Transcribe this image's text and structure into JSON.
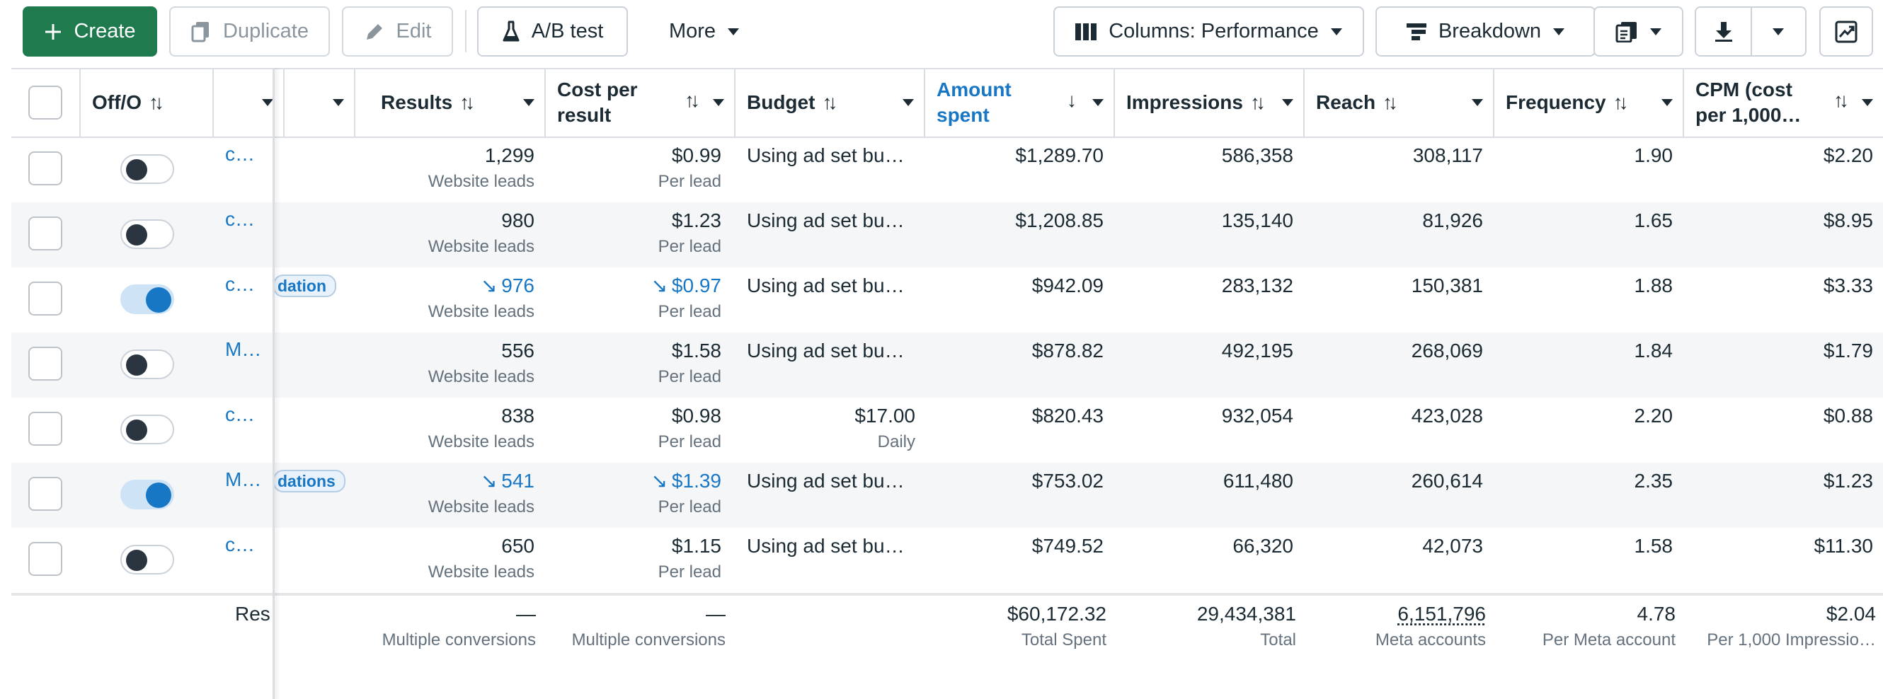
{
  "toolbar": {
    "create_label": "Create",
    "duplicate_label": "Duplicate",
    "edit_label": "Edit",
    "abtest_label": "A/B test",
    "more_label": "More",
    "columns_label": "Columns: Performance",
    "breakdown_label": "Breakdown"
  },
  "columns": {
    "off_on": "Off/O",
    "results": "Results",
    "cost_per_result": "Cost per result",
    "budget": "Budget",
    "amount_spent": "Amount spent",
    "impressions": "Impressions",
    "reach": "Reach",
    "frequency": "Frequency",
    "cpm": "CPM (cost per 1,000…"
  },
  "rows": [
    {
      "name": "c…",
      "on": false,
      "badge": "",
      "results": "1,299",
      "results_sub": "Website leads",
      "cpr": "$0.99",
      "cpr_sub": "Per lead",
      "budget": "Using ad set bu…",
      "budget_sub": "",
      "spent": "$1,289.70",
      "impressions": "586,358",
      "reach": "308,117",
      "frequency": "1.90",
      "cpm": "$2.20"
    },
    {
      "name": "c…",
      "on": false,
      "badge": "",
      "results": "980",
      "results_sub": "Website leads",
      "cpr": "$1.23",
      "cpr_sub": "Per lead",
      "budget": "Using ad set bu…",
      "budget_sub": "",
      "spent": "$1,208.85",
      "impressions": "135,140",
      "reach": "81,926",
      "frequency": "1.65",
      "cpm": "$8.95"
    },
    {
      "name": "c…",
      "on": true,
      "badge": "dation",
      "results": "976",
      "results_sub": "Website leads",
      "cpr": "$0.97",
      "cpr_sub": "Per lead",
      "budget": "Using ad set bu…",
      "budget_sub": "",
      "spent": "$942.09",
      "impressions": "283,132",
      "reach": "150,381",
      "frequency": "1.88",
      "cpm": "$3.33"
    },
    {
      "name": "M…",
      "on": false,
      "badge": "",
      "results": "556",
      "results_sub": "Website leads",
      "cpr": "$1.58",
      "cpr_sub": "Per lead",
      "budget": "Using ad set bu…",
      "budget_sub": "",
      "spent": "$878.82",
      "impressions": "492,195",
      "reach": "268,069",
      "frequency": "1.84",
      "cpm": "$1.79"
    },
    {
      "name": "c…",
      "on": false,
      "badge": "",
      "results": "838",
      "results_sub": "Website leads",
      "cpr": "$0.98",
      "cpr_sub": "Per lead",
      "budget": "$17.00",
      "budget_sub": "Daily",
      "spent": "$820.43",
      "impressions": "932,054",
      "reach": "423,028",
      "frequency": "2.20",
      "cpm": "$0.88"
    },
    {
      "name": "M…",
      "on": true,
      "badge": "dations",
      "results": "541",
      "results_sub": "Website leads",
      "cpr": "$1.39",
      "cpr_sub": "Per lead",
      "budget": "Using ad set bu…",
      "budget_sub": "",
      "spent": "$753.02",
      "impressions": "611,480",
      "reach": "260,614",
      "frequency": "2.35",
      "cpm": "$1.23"
    },
    {
      "name": "c…",
      "on": false,
      "badge": "",
      "results": "650",
      "results_sub": "Website leads",
      "cpr": "$1.15",
      "cpr_sub": "Per lead",
      "budget": "Using ad set bu…",
      "budget_sub": "",
      "spent": "$749.52",
      "impressions": "66,320",
      "reach": "42,073",
      "frequency": "1.58",
      "cpm": "$11.30"
    }
  ],
  "summary": {
    "label": "Res",
    "results": "—",
    "results_sub": "Multiple conversions",
    "cpr": "—",
    "cpr_sub": "Multiple conversions",
    "spent": "$60,172.32",
    "spent_sub": "Total Spent",
    "impressions": "29,434,381",
    "impressions_sub": "Total",
    "reach": "6,151,796",
    "reach_sub": "Meta accounts",
    "frequency": "4.78",
    "frequency_sub": "Per Meta account",
    "cpm": "$2.04",
    "cpm_sub": "Per 1,000 Impressio…"
  },
  "colors": {
    "primary_green": "#1f7a4d",
    "link_blue": "#1877c5",
    "toggle_on_track": "#cfe3f7",
    "row_alt": "#f5f6f7"
  },
  "icons": {
    "create": "plus-icon",
    "duplicate": "copy-icon",
    "edit": "pencil-icon",
    "abtest": "flask-icon",
    "columns": "columns-icon",
    "breakdown": "breakdown-icon",
    "reports": "reports-icon",
    "export": "download-icon",
    "chart": "chart-icon"
  }
}
